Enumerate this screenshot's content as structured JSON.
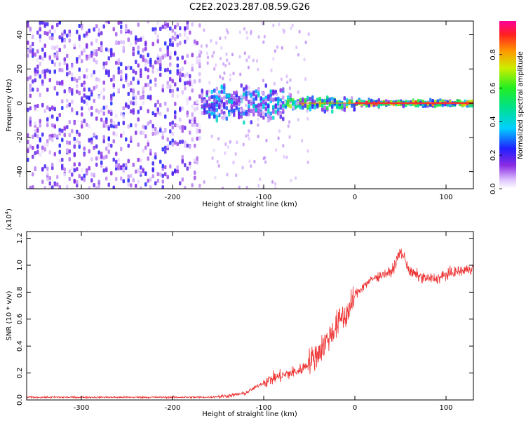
{
  "title": "C2E2.2023.287.08.59.G26",
  "chart_data": [
    {
      "type": "heatmap",
      "xlabel": "Height of straight line (km)",
      "ylabel": "Frequency (Hz)",
      "xlim": [
        -360,
        130
      ],
      "ylim": [
        -50,
        48
      ],
      "xticks": [
        -300,
        -200,
        -100,
        0,
        100
      ],
      "yticks": [
        -40,
        -20,
        0,
        20,
        40
      ],
      "colorbar": {
        "label": "Normalized spectral amplitude",
        "range": [
          0,
          1
        ],
        "ticks": [
          "0.0",
          "0.2",
          "0.4",
          "0.6",
          "0.8"
        ],
        "tick_values": [
          0.0,
          0.2,
          0.4,
          0.6,
          0.8
        ]
      },
      "signal_line_hz": 0,
      "regions": [
        {
          "x_from": -360,
          "x_to": -170,
          "freq_spread_hz": 50,
          "amplitude_range": [
            0.05,
            0.25
          ]
        },
        {
          "x_from": -170,
          "x_to": -80,
          "freq_spread_hz": 12,
          "amplitude_range": [
            0.1,
            0.45
          ]
        },
        {
          "x_from": -80,
          "x_to": 0,
          "freq_spread_hz": 5,
          "amplitude_range": [
            0.2,
            0.9
          ]
        },
        {
          "x_from": 0,
          "x_to": 130,
          "freq_spread_hz": 2,
          "amplitude_range": [
            0.4,
            1.0
          ]
        }
      ]
    },
    {
      "type": "line",
      "xlabel": "Height of straight line (km)",
      "ylabel": "SNR (10 * v/v)",
      "yscale_label": "(x10",
      "yscale_exp": "4",
      "yscale_close": ")",
      "xlim": [
        -360,
        130
      ],
      "ylim": [
        0,
        1.25
      ],
      "xticks": [
        -300,
        -200,
        -100,
        0,
        100
      ],
      "yticks": [
        "0.0",
        "0.2",
        "0.4",
        "0.6",
        "0.8",
        "1.0",
        "1.2"
      ],
      "ytick_values": [
        0.0,
        0.2,
        0.4,
        0.6,
        0.8,
        1.0,
        1.2
      ],
      "line_color": "#ee3333",
      "series": [
        {
          "x": [
            -360,
            -300,
            -250,
            -200,
            -160,
            -140,
            -120,
            -110,
            -100,
            -90,
            -80,
            -70,
            -60,
            -50,
            -40,
            -30,
            -25,
            -20,
            -15,
            -10,
            -5,
            0,
            10,
            20,
            30,
            40,
            45,
            50,
            55,
            60,
            70,
            80,
            90,
            100,
            110,
            120,
            130
          ],
          "values": [
            0.02,
            0.02,
            0.02,
            0.02,
            0.02,
            0.03,
            0.05,
            0.09,
            0.13,
            0.16,
            0.18,
            0.2,
            0.22,
            0.28,
            0.35,
            0.45,
            0.5,
            0.55,
            0.62,
            0.62,
            0.68,
            0.78,
            0.85,
            0.9,
            0.93,
            0.95,
            1.02,
            1.1,
            1.05,
            0.95,
            0.92,
            0.9,
            0.9,
            0.93,
            0.95,
            0.96,
            0.98
          ]
        }
      ]
    }
  ]
}
